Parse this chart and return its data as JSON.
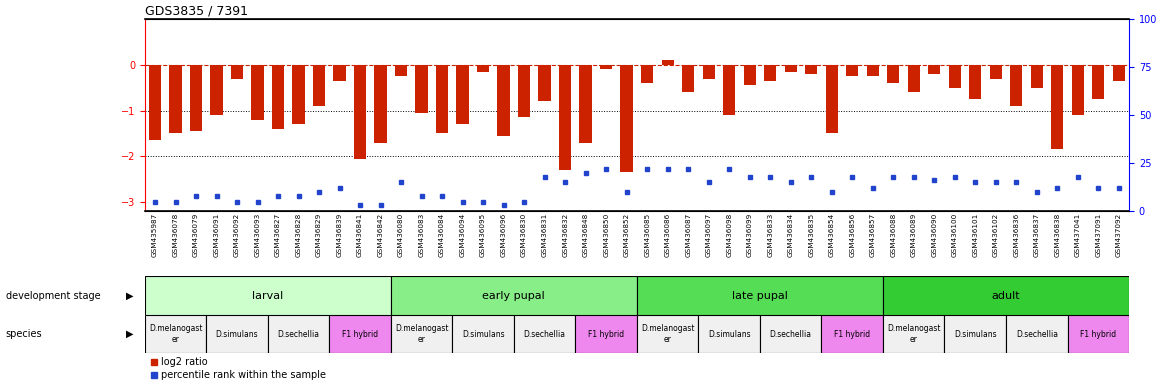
{
  "title": "GDS3835 / 7391",
  "samples": [
    "GSM435987",
    "GSM436078",
    "GSM436079",
    "GSM436091",
    "GSM436092",
    "GSM436093",
    "GSM436827",
    "GSM436828",
    "GSM436829",
    "GSM436839",
    "GSM436841",
    "GSM436842",
    "GSM436080",
    "GSM436083",
    "GSM436084",
    "GSM436094",
    "GSM436095",
    "GSM436096",
    "GSM436830",
    "GSM436831",
    "GSM436832",
    "GSM436848",
    "GSM436850",
    "GSM436852",
    "GSM436085",
    "GSM436086",
    "GSM436087",
    "GSM436097",
    "GSM436098",
    "GSM436099",
    "GSM436833",
    "GSM436834",
    "GSM436835",
    "GSM436854",
    "GSM436856",
    "GSM436857",
    "GSM436088",
    "GSM436089",
    "GSM436090",
    "GSM436100",
    "GSM436101",
    "GSM436102",
    "GSM436836",
    "GSM436837",
    "GSM436838",
    "GSM437041",
    "GSM437091",
    "GSM437092"
  ],
  "log2_ratio": [
    -1.65,
    -1.5,
    -1.45,
    -1.1,
    -0.3,
    -1.2,
    -1.4,
    -1.3,
    -0.9,
    -0.35,
    -2.05,
    -1.7,
    -0.25,
    -1.05,
    -1.5,
    -1.3,
    -0.15,
    -1.55,
    -1.15,
    -0.8,
    -2.3,
    -1.7,
    -0.1,
    -2.35,
    -0.4,
    0.1,
    -0.6,
    -0.3,
    -1.1,
    -0.45,
    -0.35,
    -0.15,
    -0.2,
    -1.5,
    -0.25,
    -0.25,
    -0.4,
    -0.6,
    -0.2,
    -0.5,
    -0.75,
    -0.3,
    -0.9,
    -0.5,
    -1.85,
    -1.1,
    -0.75,
    -0.35
  ],
  "percentile": [
    5,
    5,
    8,
    8,
    5,
    5,
    8,
    8,
    10,
    12,
    3,
    3,
    15,
    8,
    8,
    5,
    5,
    3,
    5,
    18,
    15,
    20,
    22,
    10,
    22,
    22,
    22,
    15,
    22,
    18,
    18,
    15,
    18,
    10,
    18,
    12,
    18,
    18,
    16,
    18,
    15,
    15,
    15,
    10,
    12,
    18,
    12,
    12
  ],
  "dev_stages": [
    {
      "label": "larval",
      "start": 0,
      "end": 12,
      "color": "#ccffcc"
    },
    {
      "label": "early pupal",
      "start": 12,
      "end": 24,
      "color": "#88ee88"
    },
    {
      "label": "late pupal",
      "start": 24,
      "end": 36,
      "color": "#55dd55"
    },
    {
      "label": "adult",
      "start": 36,
      "end": 48,
      "color": "#33cc33"
    }
  ],
  "species_blocks": [
    {
      "label": "D.melanogast\ner",
      "start": 0,
      "end": 3,
      "color": "#f0f0f0"
    },
    {
      "label": "D.simulans",
      "start": 3,
      "end": 6,
      "color": "#f0f0f0"
    },
    {
      "label": "D.sechellia",
      "start": 6,
      "end": 9,
      "color": "#f0f0f0"
    },
    {
      "label": "F1 hybrid",
      "start": 9,
      "end": 12,
      "color": "#ee88ee"
    },
    {
      "label": "D.melanogast\ner",
      "start": 12,
      "end": 15,
      "color": "#f0f0f0"
    },
    {
      "label": "D.simulans",
      "start": 15,
      "end": 18,
      "color": "#f0f0f0"
    },
    {
      "label": "D.sechellia",
      "start": 18,
      "end": 21,
      "color": "#f0f0f0"
    },
    {
      "label": "F1 hybrid",
      "start": 21,
      "end": 24,
      "color": "#ee88ee"
    },
    {
      "label": "D.melanogast\ner",
      "start": 24,
      "end": 27,
      "color": "#f0f0f0"
    },
    {
      "label": "D.simulans",
      "start": 27,
      "end": 30,
      "color": "#f0f0f0"
    },
    {
      "label": "D.sechellia",
      "start": 30,
      "end": 33,
      "color": "#f0f0f0"
    },
    {
      "label": "F1 hybrid",
      "start": 33,
      "end": 36,
      "color": "#ee88ee"
    },
    {
      "label": "D.melanogast\ner",
      "start": 36,
      "end": 39,
      "color": "#f0f0f0"
    },
    {
      "label": "D.simulans",
      "start": 39,
      "end": 42,
      "color": "#f0f0f0"
    },
    {
      "label": "D.sechellia",
      "start": 42,
      "end": 45,
      "color": "#f0f0f0"
    },
    {
      "label": "F1 hybrid",
      "start": 45,
      "end": 48,
      "color": "#ee88ee"
    }
  ],
  "ylim_left": [
    -3.2,
    1.0
  ],
  "ylim_right": [
    0,
    100
  ],
  "yticks_left": [
    0,
    -1,
    -2,
    -3
  ],
  "yticks_right": [
    0,
    25,
    50,
    75,
    100
  ],
  "bar_color": "#cc2200",
  "dot_color": "#2244cc",
  "hline_color": "#cc2200",
  "dotted_lines": [
    -1,
    -2
  ],
  "background_color": "#ffffff"
}
